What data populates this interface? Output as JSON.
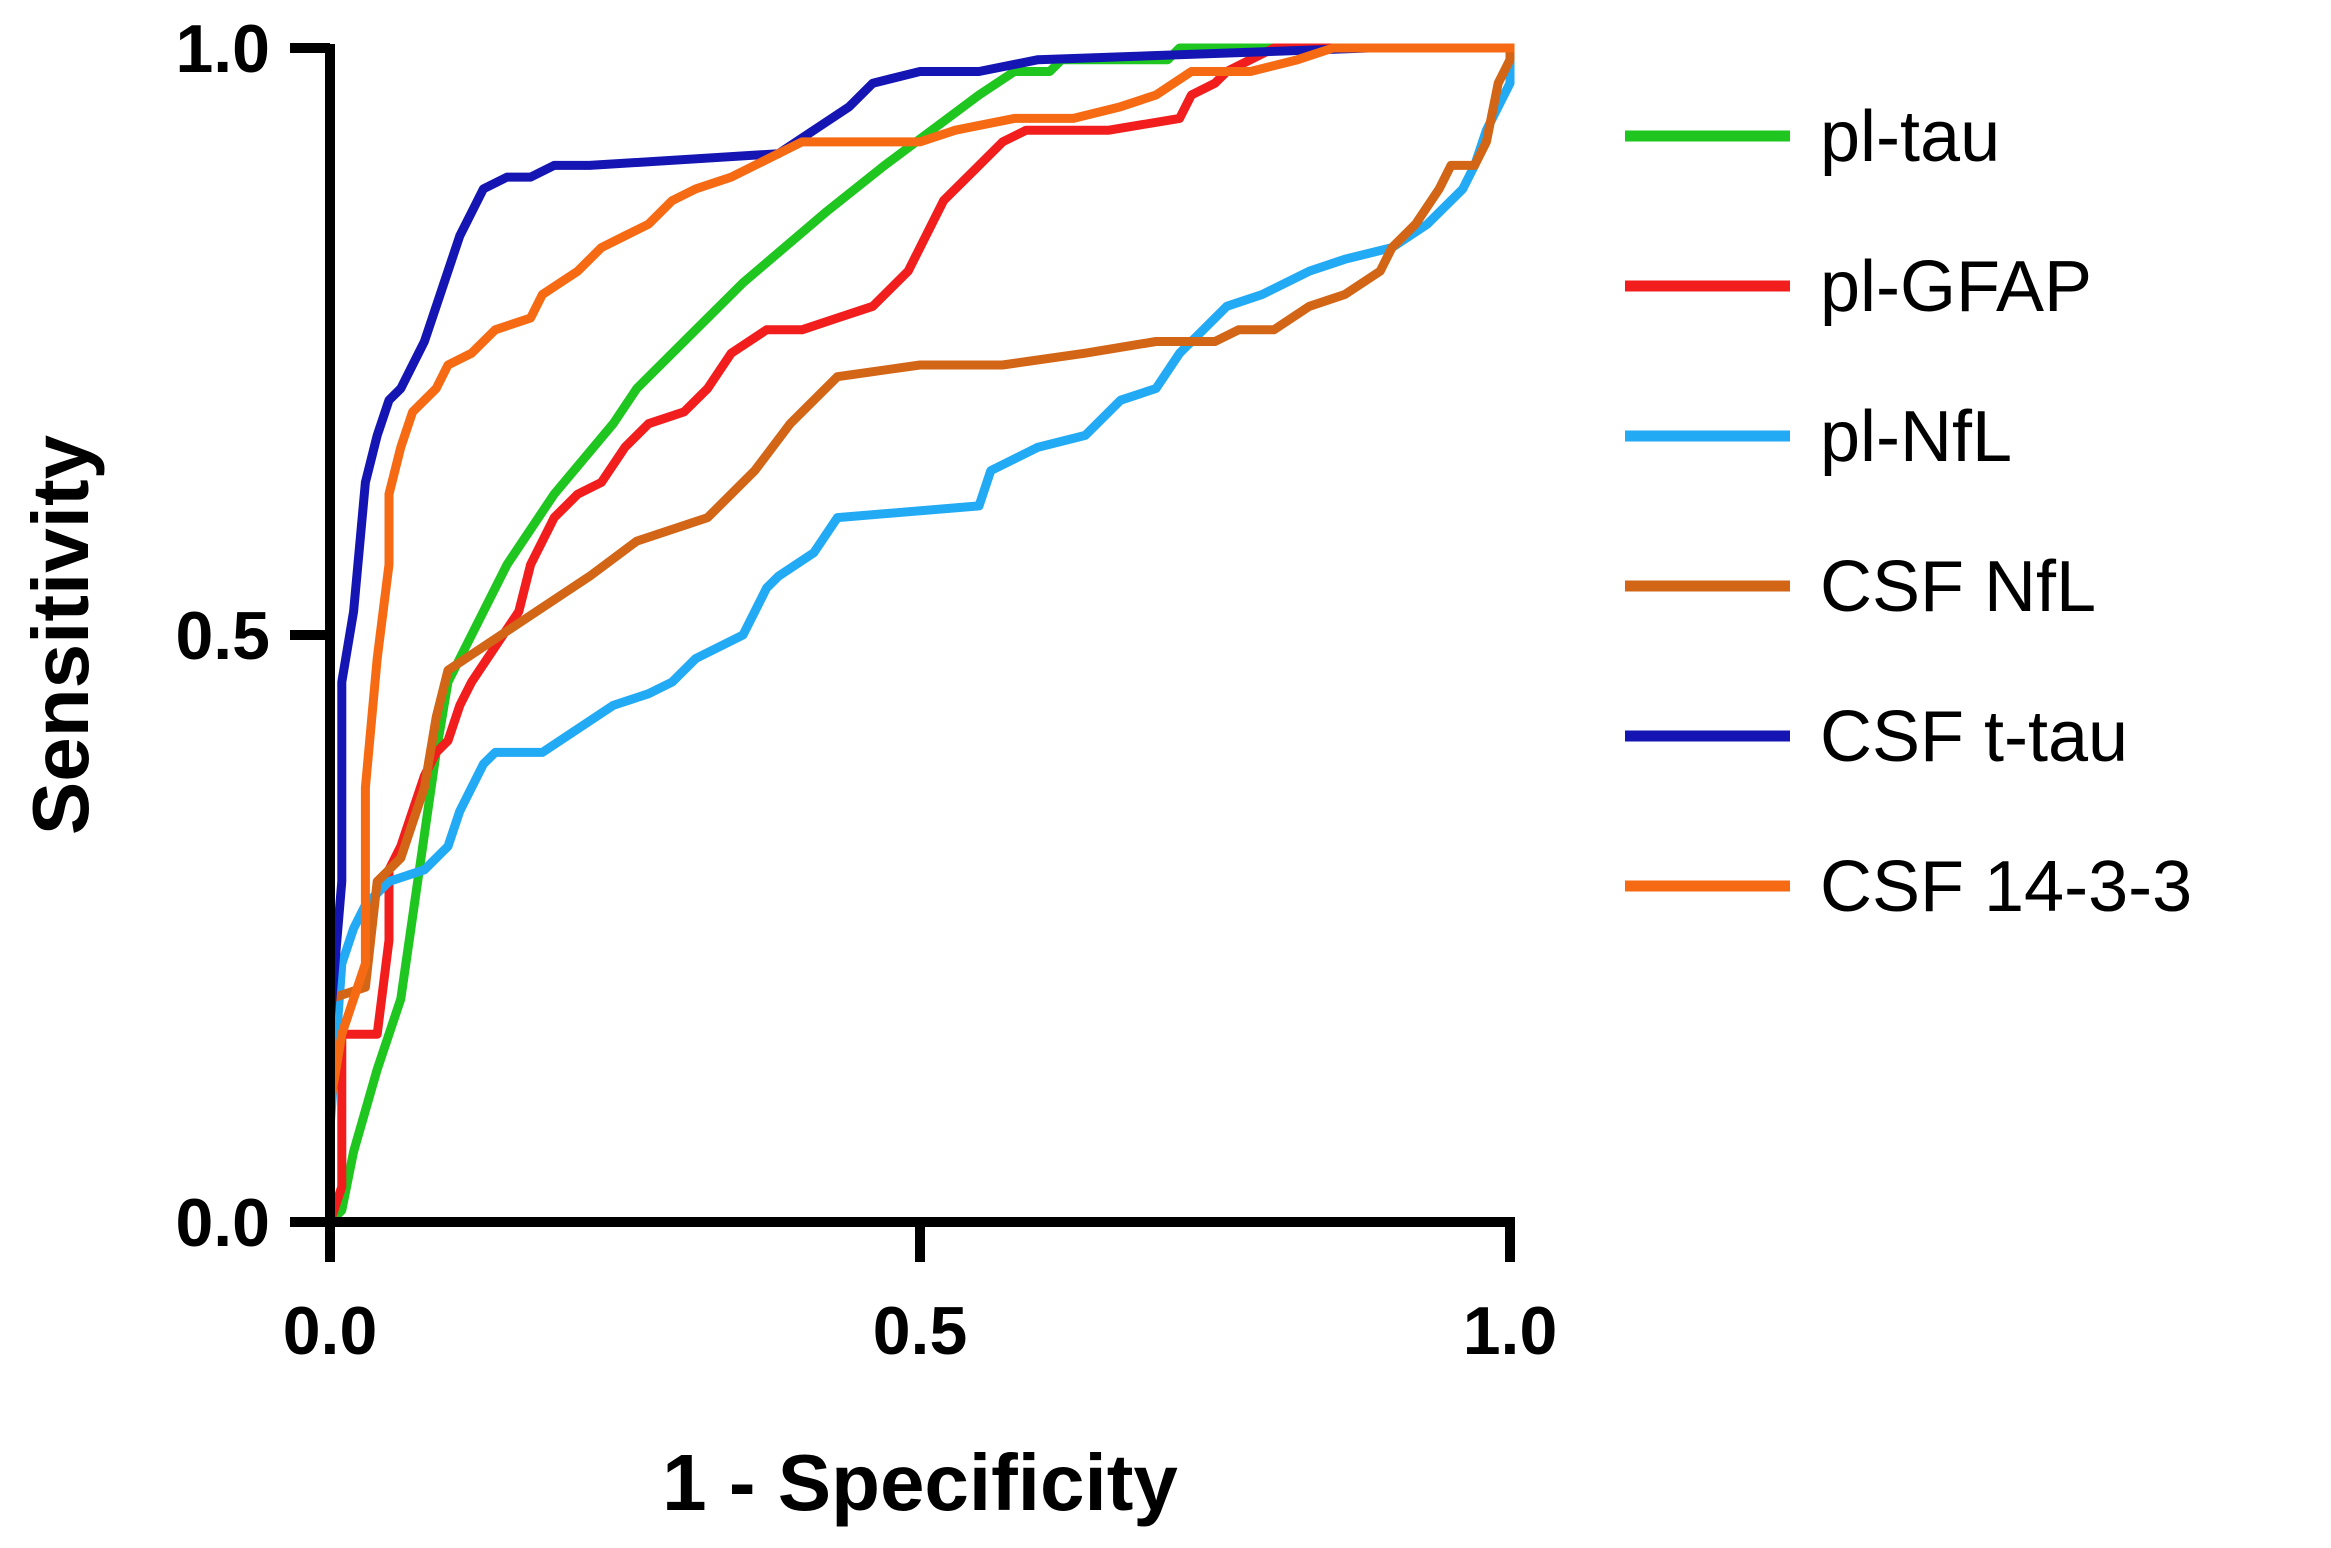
{
  "chart_data": {
    "type": "line",
    "title": "",
    "xlabel": "1 - Specificity",
    "ylabel": "Sensitivity",
    "xlim": [
      0,
      1
    ],
    "ylim": [
      0,
      1
    ],
    "xticks": [
      "0.0",
      "0.5",
      "1.0"
    ],
    "yticks": [
      "0.0",
      "0.5",
      "1.0"
    ],
    "grid": false,
    "legend_position": "right",
    "series": [
      {
        "name": "pl-tau",
        "color": "#1fc61f",
        "points": [
          [
            0,
            0
          ],
          [
            0.01,
            0.01
          ],
          [
            0.02,
            0.06
          ],
          [
            0.04,
            0.13
          ],
          [
            0.06,
            0.19
          ],
          [
            0.07,
            0.26
          ],
          [
            0.08,
            0.33
          ],
          [
            0.09,
            0.4
          ],
          [
            0.1,
            0.46
          ],
          [
            0.12,
            0.5
          ],
          [
            0.15,
            0.56
          ],
          [
            0.19,
            0.62
          ],
          [
            0.24,
            0.68
          ],
          [
            0.26,
            0.71
          ],
          [
            0.3,
            0.75
          ],
          [
            0.35,
            0.8
          ],
          [
            0.42,
            0.86
          ],
          [
            0.47,
            0.9
          ],
          [
            0.51,
            0.93
          ],
          [
            0.55,
            0.96
          ],
          [
            0.58,
            0.98
          ],
          [
            0.61,
            0.98
          ],
          [
            0.62,
            0.99
          ],
          [
            0.71,
            0.99
          ],
          [
            0.72,
            1
          ],
          [
            1,
            1
          ]
        ]
      },
      {
        "name": "pl-GFAP",
        "color": "#f21d1d",
        "points": [
          [
            0,
            0
          ],
          [
            0.01,
            0.03
          ],
          [
            0.01,
            0.16
          ],
          [
            0.04,
            0.16
          ],
          [
            0.05,
            0.24
          ],
          [
            0.05,
            0.3
          ],
          [
            0.06,
            0.32
          ],
          [
            0.07,
            0.35
          ],
          [
            0.08,
            0.38
          ],
          [
            0.09,
            0.4
          ],
          [
            0.1,
            0.41
          ],
          [
            0.11,
            0.44
          ],
          [
            0.12,
            0.46
          ],
          [
            0.14,
            0.49
          ],
          [
            0.16,
            0.52
          ],
          [
            0.17,
            0.56
          ],
          [
            0.19,
            0.6
          ],
          [
            0.21,
            0.62
          ],
          [
            0.23,
            0.63
          ],
          [
            0.25,
            0.66
          ],
          [
            0.27,
            0.68
          ],
          [
            0.3,
            0.69
          ],
          [
            0.32,
            0.71
          ],
          [
            0.34,
            0.74
          ],
          [
            0.37,
            0.76
          ],
          [
            0.4,
            0.76
          ],
          [
            0.43,
            0.77
          ],
          [
            0.46,
            0.78
          ],
          [
            0.49,
            0.81
          ],
          [
            0.5,
            0.83
          ],
          [
            0.51,
            0.85
          ],
          [
            0.52,
            0.87
          ],
          [
            0.55,
            0.9
          ],
          [
            0.57,
            0.92
          ],
          [
            0.59,
            0.93
          ],
          [
            0.66,
            0.93
          ],
          [
            0.72,
            0.94
          ],
          [
            0.73,
            0.96
          ],
          [
            0.75,
            0.97
          ],
          [
            0.76,
            0.98
          ],
          [
            0.78,
            0.99
          ],
          [
            0.8,
            1
          ],
          [
            1,
            1
          ]
        ]
      },
      {
        "name": "pl-NfL",
        "color": "#22aaf5",
        "points": [
          [
            0,
            0
          ],
          [
            0,
            0.08
          ],
          [
            0.01,
            0.22
          ],
          [
            0.02,
            0.25
          ],
          [
            0.03,
            0.27
          ],
          [
            0.05,
            0.29
          ],
          [
            0.08,
            0.3
          ],
          [
            0.1,
            0.32
          ],
          [
            0.11,
            0.35
          ],
          [
            0.12,
            0.37
          ],
          [
            0.13,
            0.39
          ],
          [
            0.14,
            0.4
          ],
          [
            0.18,
            0.4
          ],
          [
            0.21,
            0.42
          ],
          [
            0.24,
            0.44
          ],
          [
            0.27,
            0.45
          ],
          [
            0.29,
            0.46
          ],
          [
            0.31,
            0.48
          ],
          [
            0.35,
            0.5
          ],
          [
            0.37,
            0.54
          ],
          [
            0.38,
            0.55
          ],
          [
            0.41,
            0.57
          ],
          [
            0.43,
            0.6
          ],
          [
            0.55,
            0.61
          ],
          [
            0.56,
            0.64
          ],
          [
            0.6,
            0.66
          ],
          [
            0.64,
            0.67
          ],
          [
            0.67,
            0.7
          ],
          [
            0.7,
            0.71
          ],
          [
            0.72,
            0.74
          ],
          [
            0.74,
            0.76
          ],
          [
            0.76,
            0.78
          ],
          [
            0.79,
            0.79
          ],
          [
            0.83,
            0.81
          ],
          [
            0.86,
            0.82
          ],
          [
            0.9,
            0.83
          ],
          [
            0.93,
            0.85
          ],
          [
            0.96,
            0.88
          ],
          [
            0.97,
            0.9
          ],
          [
            0.98,
            0.93
          ],
          [
            1,
            0.97
          ],
          [
            1,
            1
          ]
        ]
      },
      {
        "name": "CSF NfL",
        "color": "#d26516",
        "points": [
          [
            0,
            0.1
          ],
          [
            0,
            0.19
          ],
          [
            0.03,
            0.2
          ],
          [
            0.04,
            0.29
          ],
          [
            0.06,
            0.31
          ],
          [
            0.08,
            0.37
          ],
          [
            0.09,
            0.43
          ],
          [
            0.1,
            0.47
          ],
          [
            0.13,
            0.49
          ],
          [
            0.16,
            0.51
          ],
          [
            0.19,
            0.53
          ],
          [
            0.22,
            0.55
          ],
          [
            0.26,
            0.58
          ],
          [
            0.32,
            0.6
          ],
          [
            0.36,
            0.64
          ],
          [
            0.39,
            0.68
          ],
          [
            0.43,
            0.72
          ],
          [
            0.5,
            0.73
          ],
          [
            0.57,
            0.73
          ],
          [
            0.64,
            0.74
          ],
          [
            0.7,
            0.75
          ],
          [
            0.75,
            0.75
          ],
          [
            0.77,
            0.76
          ],
          [
            0.8,
            0.76
          ],
          [
            0.83,
            0.78
          ],
          [
            0.86,
            0.79
          ],
          [
            0.89,
            0.81
          ],
          [
            0.9,
            0.83
          ],
          [
            0.92,
            0.85
          ],
          [
            0.94,
            0.88
          ],
          [
            0.95,
            0.9
          ],
          [
            0.97,
            0.9
          ],
          [
            0.98,
            0.92
          ],
          [
            0.99,
            0.97
          ],
          [
            1,
            0.99
          ],
          [
            1,
            1
          ]
        ]
      },
      {
        "name": "CSF t-tau",
        "color": "#1515b4",
        "points": [
          [
            0,
            0
          ],
          [
            0,
            0.17
          ],
          [
            0.01,
            0.29
          ],
          [
            0.01,
            0.46
          ],
          [
            0.02,
            0.52
          ],
          [
            0.03,
            0.63
          ],
          [
            0.04,
            0.67
          ],
          [
            0.05,
            0.7
          ],
          [
            0.06,
            0.71
          ],
          [
            0.07,
            0.73
          ],
          [
            0.08,
            0.75
          ],
          [
            0.09,
            0.78
          ],
          [
            0.1,
            0.81
          ],
          [
            0.11,
            0.84
          ],
          [
            0.12,
            0.86
          ],
          [
            0.13,
            0.88
          ],
          [
            0.15,
            0.89
          ],
          [
            0.17,
            0.89
          ],
          [
            0.19,
            0.9
          ],
          [
            0.22,
            0.9
          ],
          [
            0.38,
            0.91
          ],
          [
            0.41,
            0.93
          ],
          [
            0.44,
            0.95
          ],
          [
            0.46,
            0.97
          ],
          [
            0.5,
            0.98
          ],
          [
            0.55,
            0.98
          ],
          [
            0.6,
            0.99
          ],
          [
            0.88,
            1
          ],
          [
            1,
            1
          ]
        ]
      },
      {
        "name": "CSF 14-3-3",
        "color": "#f56a13",
        "points": [
          [
            0,
            0.1
          ],
          [
            0.01,
            0.16
          ],
          [
            0.03,
            0.22
          ],
          [
            0.03,
            0.37
          ],
          [
            0.04,
            0.48
          ],
          [
            0.05,
            0.56
          ],
          [
            0.05,
            0.62
          ],
          [
            0.06,
            0.66
          ],
          [
            0.07,
            0.69
          ],
          [
            0.09,
            0.71
          ],
          [
            0.1,
            0.73
          ],
          [
            0.12,
            0.74
          ],
          [
            0.14,
            0.76
          ],
          [
            0.17,
            0.77
          ],
          [
            0.18,
            0.79
          ],
          [
            0.21,
            0.81
          ],
          [
            0.23,
            0.83
          ],
          [
            0.25,
            0.84
          ],
          [
            0.27,
            0.85
          ],
          [
            0.29,
            0.87
          ],
          [
            0.31,
            0.88
          ],
          [
            0.34,
            0.89
          ],
          [
            0.36,
            0.9
          ],
          [
            0.4,
            0.92
          ],
          [
            0.5,
            0.92
          ],
          [
            0.53,
            0.93
          ],
          [
            0.58,
            0.94
          ],
          [
            0.63,
            0.94
          ],
          [
            0.67,
            0.95
          ],
          [
            0.7,
            0.96
          ],
          [
            0.73,
            0.98
          ],
          [
            0.78,
            0.98
          ],
          [
            0.82,
            0.99
          ],
          [
            0.85,
            1
          ],
          [
            1,
            1
          ]
        ]
      }
    ]
  }
}
